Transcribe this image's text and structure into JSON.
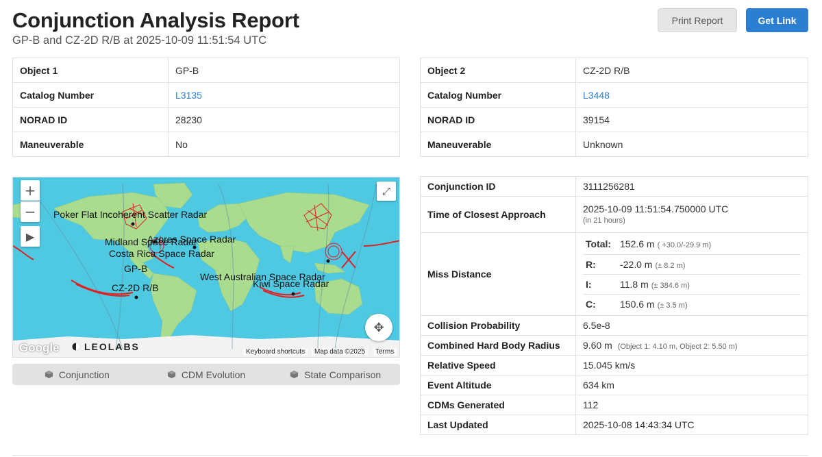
{
  "header": {
    "title": "Conjunction Analysis Report",
    "subtitle": "GP-B and CZ-2D R/B at 2025-10-09 11:51:54 UTC",
    "print_label": "Print Report",
    "link_label": "Get Link",
    "accent_color": "#2c7fd0"
  },
  "object1": {
    "rows": [
      {
        "label": "Object 1",
        "value": "GP-B"
      },
      {
        "label": "Catalog Number",
        "value": "L3135"
      },
      {
        "label": "NORAD ID",
        "value": "28230"
      },
      {
        "label": "Maneuverable",
        "value": "No"
      }
    ]
  },
  "object2": {
    "rows": [
      {
        "label": "Object 2",
        "value": "CZ-2D R/B"
      },
      {
        "label": "Catalog Number",
        "value": "L3448"
      },
      {
        "label": "NORAD ID",
        "value": "39154"
      },
      {
        "label": "Maneuverable",
        "value": "Unknown"
      }
    ]
  },
  "conjunction": {
    "id_label": "Conjunction ID",
    "id_value": "3111256281",
    "tca_label": "Time of Closest Approach",
    "tca_value": "2025-10-09 11:51:54.750000 UTC",
    "tca_relative": "(in 21 hours)",
    "miss_label": "Miss Distance",
    "miss": [
      {
        "label": "Total:",
        "value": "152.6 m",
        "err": "( +30.0/-29.9 m)"
      },
      {
        "label": "R:",
        "value": "-22.0 m",
        "err": "(± 8.2 m)"
      },
      {
        "label": "I:",
        "value": "11.8 m",
        "err": "(± 384.6 m)"
      },
      {
        "label": "C:",
        "value": "150.6 m",
        "err": "(± 3.5 m)"
      }
    ],
    "prob_label": "Collision Probability",
    "prob_value": "6.5e-8",
    "hbr_label": "Combined Hard Body Radius",
    "hbr_value": "9.60 m",
    "hbr_detail": "(Object 1: 4.10 m, Object 2: 5.50 m)",
    "speed_label": "Relative Speed",
    "speed_value": "15.045 km/s",
    "alt_label": "Event Altitude",
    "alt_value": "634 km",
    "cdms_label": "CDMs Generated",
    "cdms_value": "112",
    "updated_label": "Last Updated",
    "updated_value": "2025-10-08 14:43:34 UTC"
  },
  "map": {
    "labels": {
      "poker_flat": "Poker Flat Incoherent Scatter Radar",
      "azores": "Azores Space Radar",
      "midland": "Midland Space Radar",
      "costa_rica": "Costa Rica Space Radar",
      "gpb": "GP-B",
      "cz2d": "CZ-2D R/B",
      "west_aus": "West Australian Space Radar",
      "kiwi": "Kiwi Space Radar"
    },
    "google": "Google",
    "leolabs": "LEOLABS",
    "shortcuts": "Keyboard shortcuts",
    "map_data": "Map data ©2025",
    "terms": "Terms",
    "water_color": "#4fc9e2",
    "land_color": "#a9dc8f",
    "track_color": "#e02020"
  },
  "tabs": [
    {
      "label": "Conjunction"
    },
    {
      "label": "CDM Evolution"
    },
    {
      "label": "State Comparison"
    }
  ]
}
